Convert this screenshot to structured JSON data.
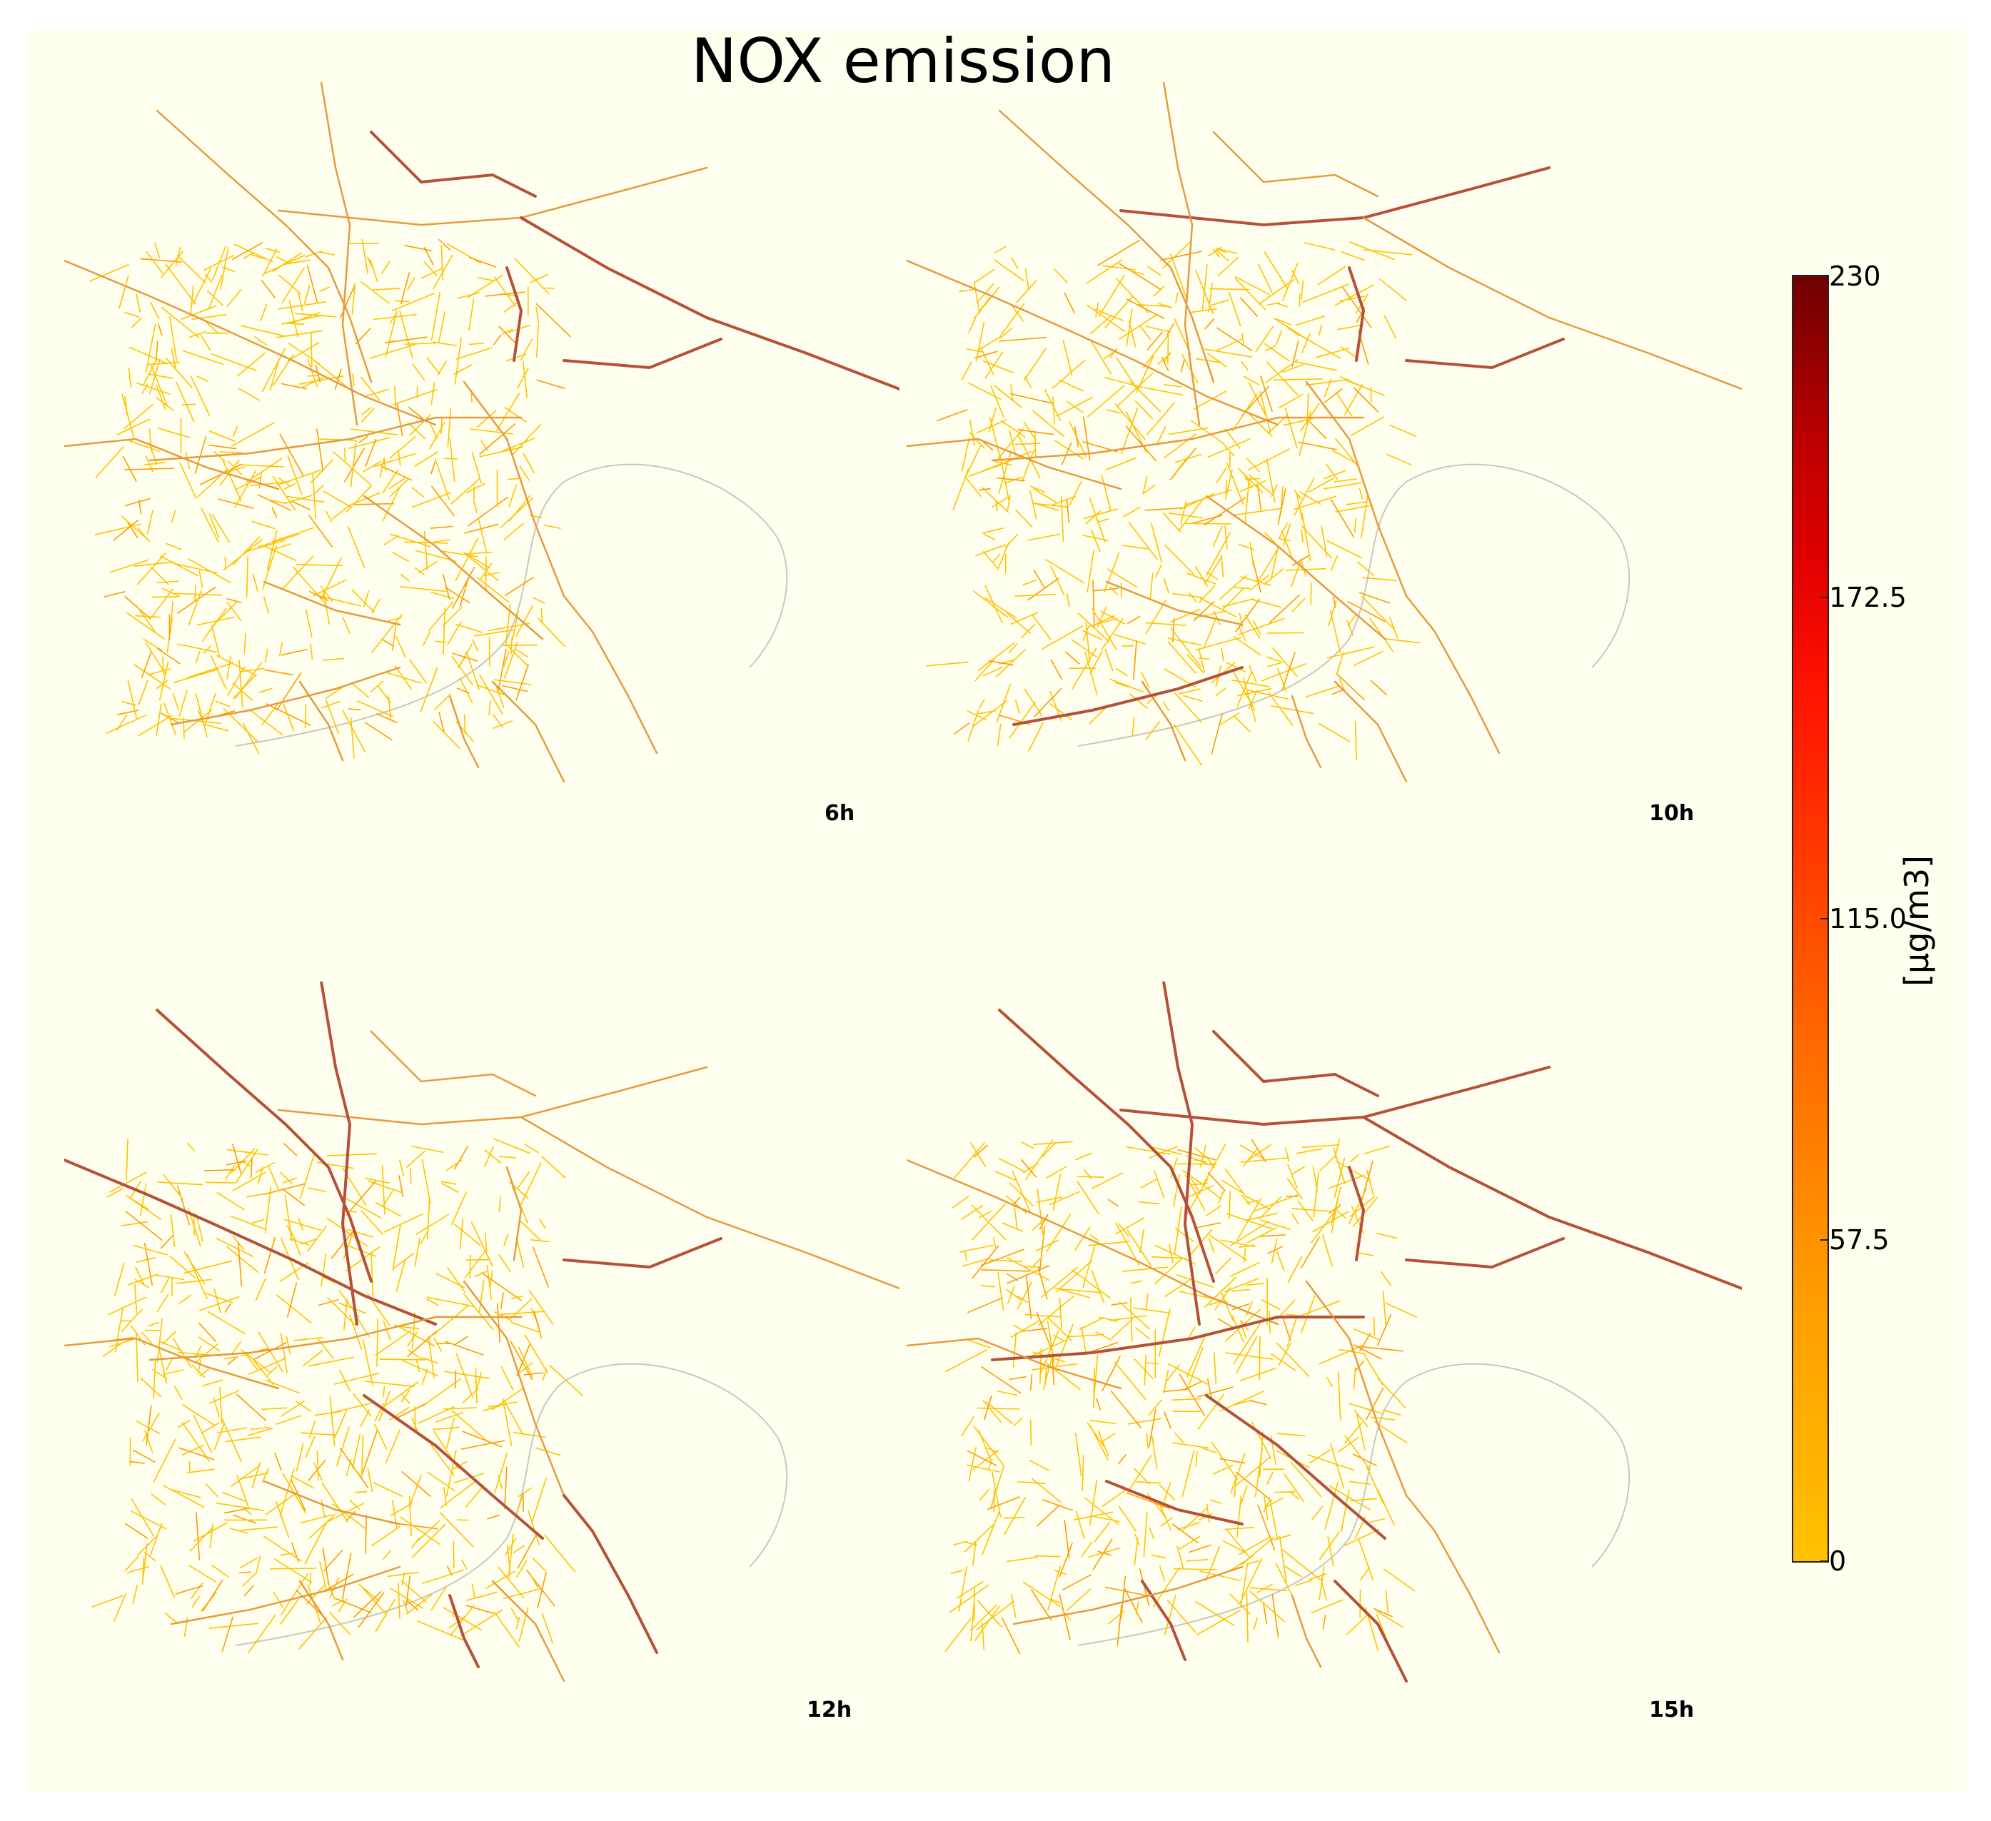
{
  "figure": {
    "title": "NOX emission",
    "background_color": "#fffff0"
  },
  "panels": [
    {
      "label": "6h",
      "intensity": 0.55
    },
    {
      "label": "10h",
      "intensity": 0.4
    },
    {
      "label": "12h",
      "intensity": 0.42
    },
    {
      "label": "15h",
      "intensity": 0.45
    }
  ],
  "colorbar": {
    "label": "[µg/m3]",
    "min": 0,
    "max": 230,
    "ticks": [
      "230",
      "172.5",
      "115.0",
      "57.5",
      "0"
    ],
    "colors": [
      "#ffc200",
      "#ff9a00",
      "#ff6a00",
      "#ff3a00",
      "#e00000",
      "#6e0000"
    ]
  }
}
